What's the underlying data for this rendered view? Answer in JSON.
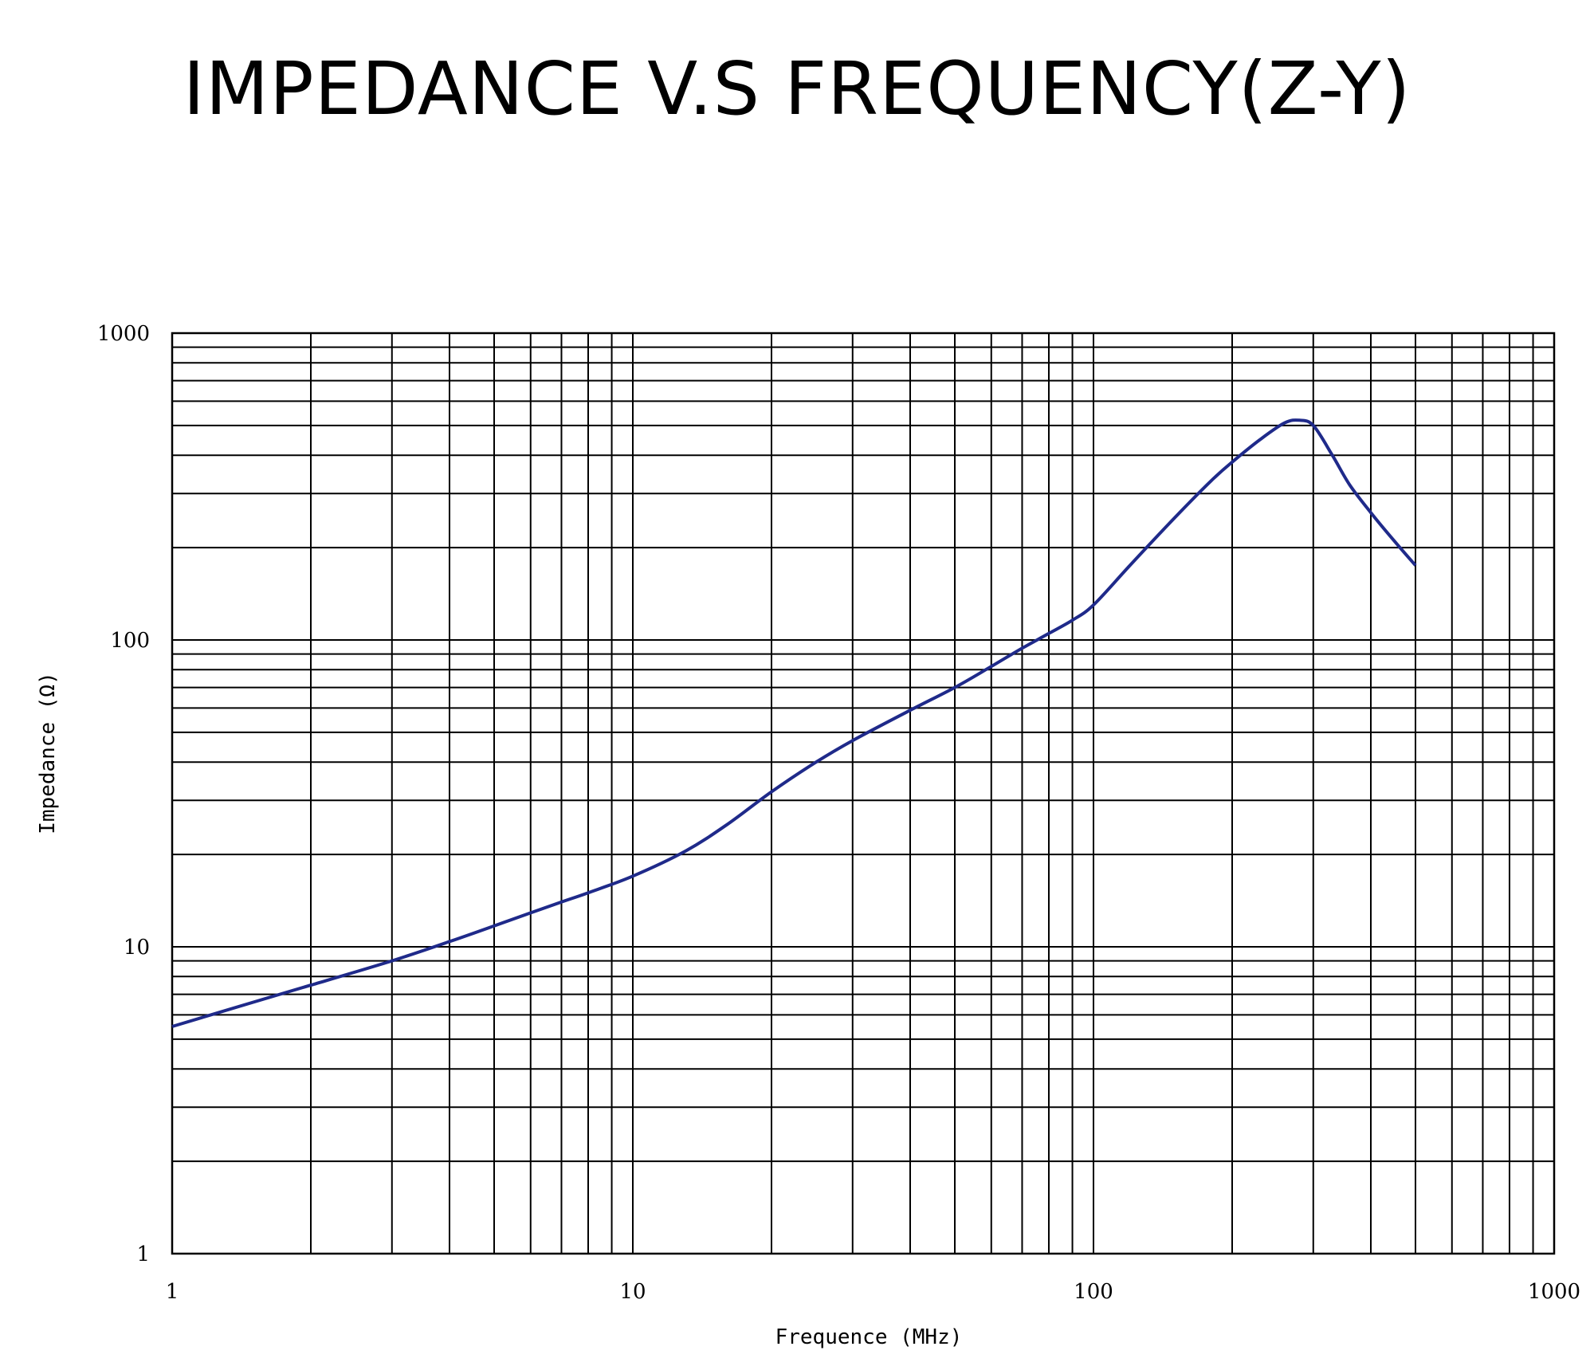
{
  "title": "IMPEDANCE V.S FREQUENCY(Z-Y)",
  "colors": {
    "curve": "#1f2a8a",
    "grid": "#000000",
    "background": "#ffffff"
  },
  "chart_data": {
    "type": "line",
    "title": "IMPEDANCE V.S FREQUENCY(Z-Y)",
    "xlabel": "Frequence (MHz)",
    "ylabel": "Impedance (Ω)",
    "xscale": "log",
    "yscale": "log",
    "xlim": [
      1,
      1000
    ],
    "ylim": [
      1,
      1000
    ],
    "grid": true,
    "x_ticks": [
      "1",
      "10",
      "100",
      "1000"
    ],
    "y_ticks": [
      "1",
      "10",
      "100",
      "1000"
    ],
    "series": [
      {
        "x": [
          1,
          1.5,
          2,
          3,
          4,
          5,
          6,
          7,
          8,
          10,
          13,
          16,
          20,
          25,
          30,
          40,
          50,
          60,
          70,
          80,
          90,
          100,
          120,
          150,
          180,
          200,
          230,
          260,
          280,
          300,
          330,
          360,
          400,
          450,
          500
        ],
        "y": [
          5.5,
          6.6,
          7.5,
          9,
          10.4,
          11.7,
          12.9,
          14,
          15,
          17,
          20.5,
          25,
          32,
          40,
          47,
          59,
          70,
          82,
          94,
          105,
          116,
          130,
          175,
          250,
          330,
          380,
          450,
          510,
          520,
          500,
          400,
          320,
          260,
          210,
          175
        ]
      }
    ]
  }
}
